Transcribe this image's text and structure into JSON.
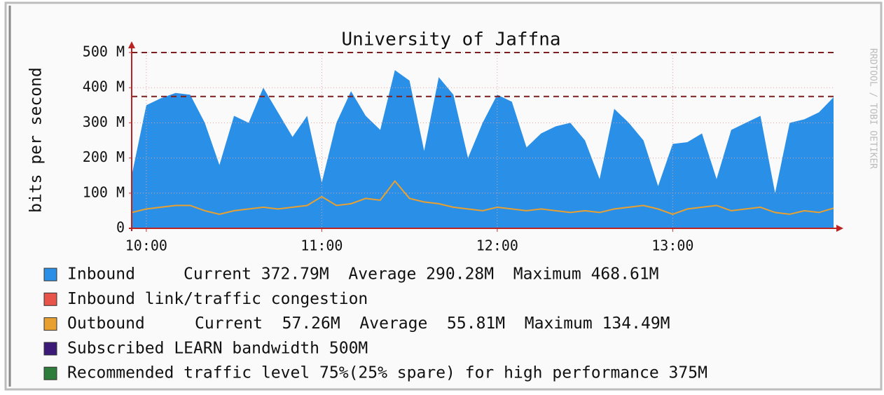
{
  "chart_data": {
    "type": "area",
    "title": "University of Jaffna",
    "y_label": "bits per second",
    "watermark": "RRDTOOL / TOBI OETIKER",
    "x": [
      595,
      600,
      605,
      610,
      615,
      620,
      625,
      630,
      635,
      640,
      645,
      650,
      655,
      660,
      665,
      670,
      675,
      680,
      685,
      690,
      695,
      700,
      705,
      710,
      715,
      720,
      725,
      730,
      735,
      740,
      745,
      750,
      755,
      760,
      765,
      770,
      775,
      780,
      785,
      790,
      795,
      800,
      805,
      810,
      815,
      820,
      825,
      830,
      835
    ],
    "series": [
      {
        "name": "Inbound",
        "stats": "Current 372.79M  Average 290.28M  Maximum 468.61M",
        "color": "#2a8fe6",
        "values": [
          150,
          350,
          370,
          385,
          380,
          300,
          180,
          320,
          300,
          400,
          330,
          260,
          320,
          130,
          300,
          390,
          320,
          280,
          450,
          420,
          220,
          430,
          380,
          200,
          300,
          380,
          360,
          230,
          270,
          290,
          300,
          250,
          140,
          340,
          300,
          250,
          120,
          240,
          245,
          270,
          140,
          280,
          300,
          320,
          100,
          300,
          310,
          330,
          372.79
        ]
      },
      {
        "name": "Outbound",
        "stats": "Current  57.26M  Average  55.81M  Maximum 134.49M",
        "color": "#e8a030",
        "values": [
          45,
          55,
          60,
          65,
          65,
          50,
          40,
          50,
          55,
          60,
          55,
          60,
          65,
          90,
          65,
          70,
          85,
          80,
          134.49,
          85,
          75,
          70,
          60,
          55,
          50,
          60,
          55,
          50,
          55,
          50,
          45,
          50,
          45,
          55,
          60,
          65,
          55,
          40,
          55,
          60,
          65,
          50,
          55,
          60,
          45,
          40,
          50,
          45,
          57.26
        ]
      }
    ],
    "congestion": {
      "name": "Inbound link/traffic congestion",
      "color": "#e8534a"
    },
    "thresholds": [
      {
        "value": 500,
        "name": "Subscribed LEARN bandwidth 500M",
        "color": "#3c1a78"
      },
      {
        "value": 375,
        "name": "Recommended traffic level 75%(25% spare) for high performance 375M",
        "color": "#2e7d3a"
      }
    ],
    "xlim": [
      595,
      835
    ],
    "xticks": [
      {
        "value": 600,
        "label": "10:00"
      },
      {
        "value": 660,
        "label": "11:00"
      },
      {
        "value": 720,
        "label": "12:00"
      },
      {
        "value": 780,
        "label": "13:00"
      }
    ],
    "ylim": [
      0,
      500
    ],
    "yticks": [
      0,
      {
        "value": 100,
        "label": "100 M"
      },
      {
        "value": 200,
        "label": "200 M"
      },
      {
        "value": 300,
        "label": "300 M"
      },
      {
        "value": 400,
        "label": "400 M"
      },
      {
        "value": 500,
        "label": "500 M"
      }
    ],
    "grid": true
  }
}
